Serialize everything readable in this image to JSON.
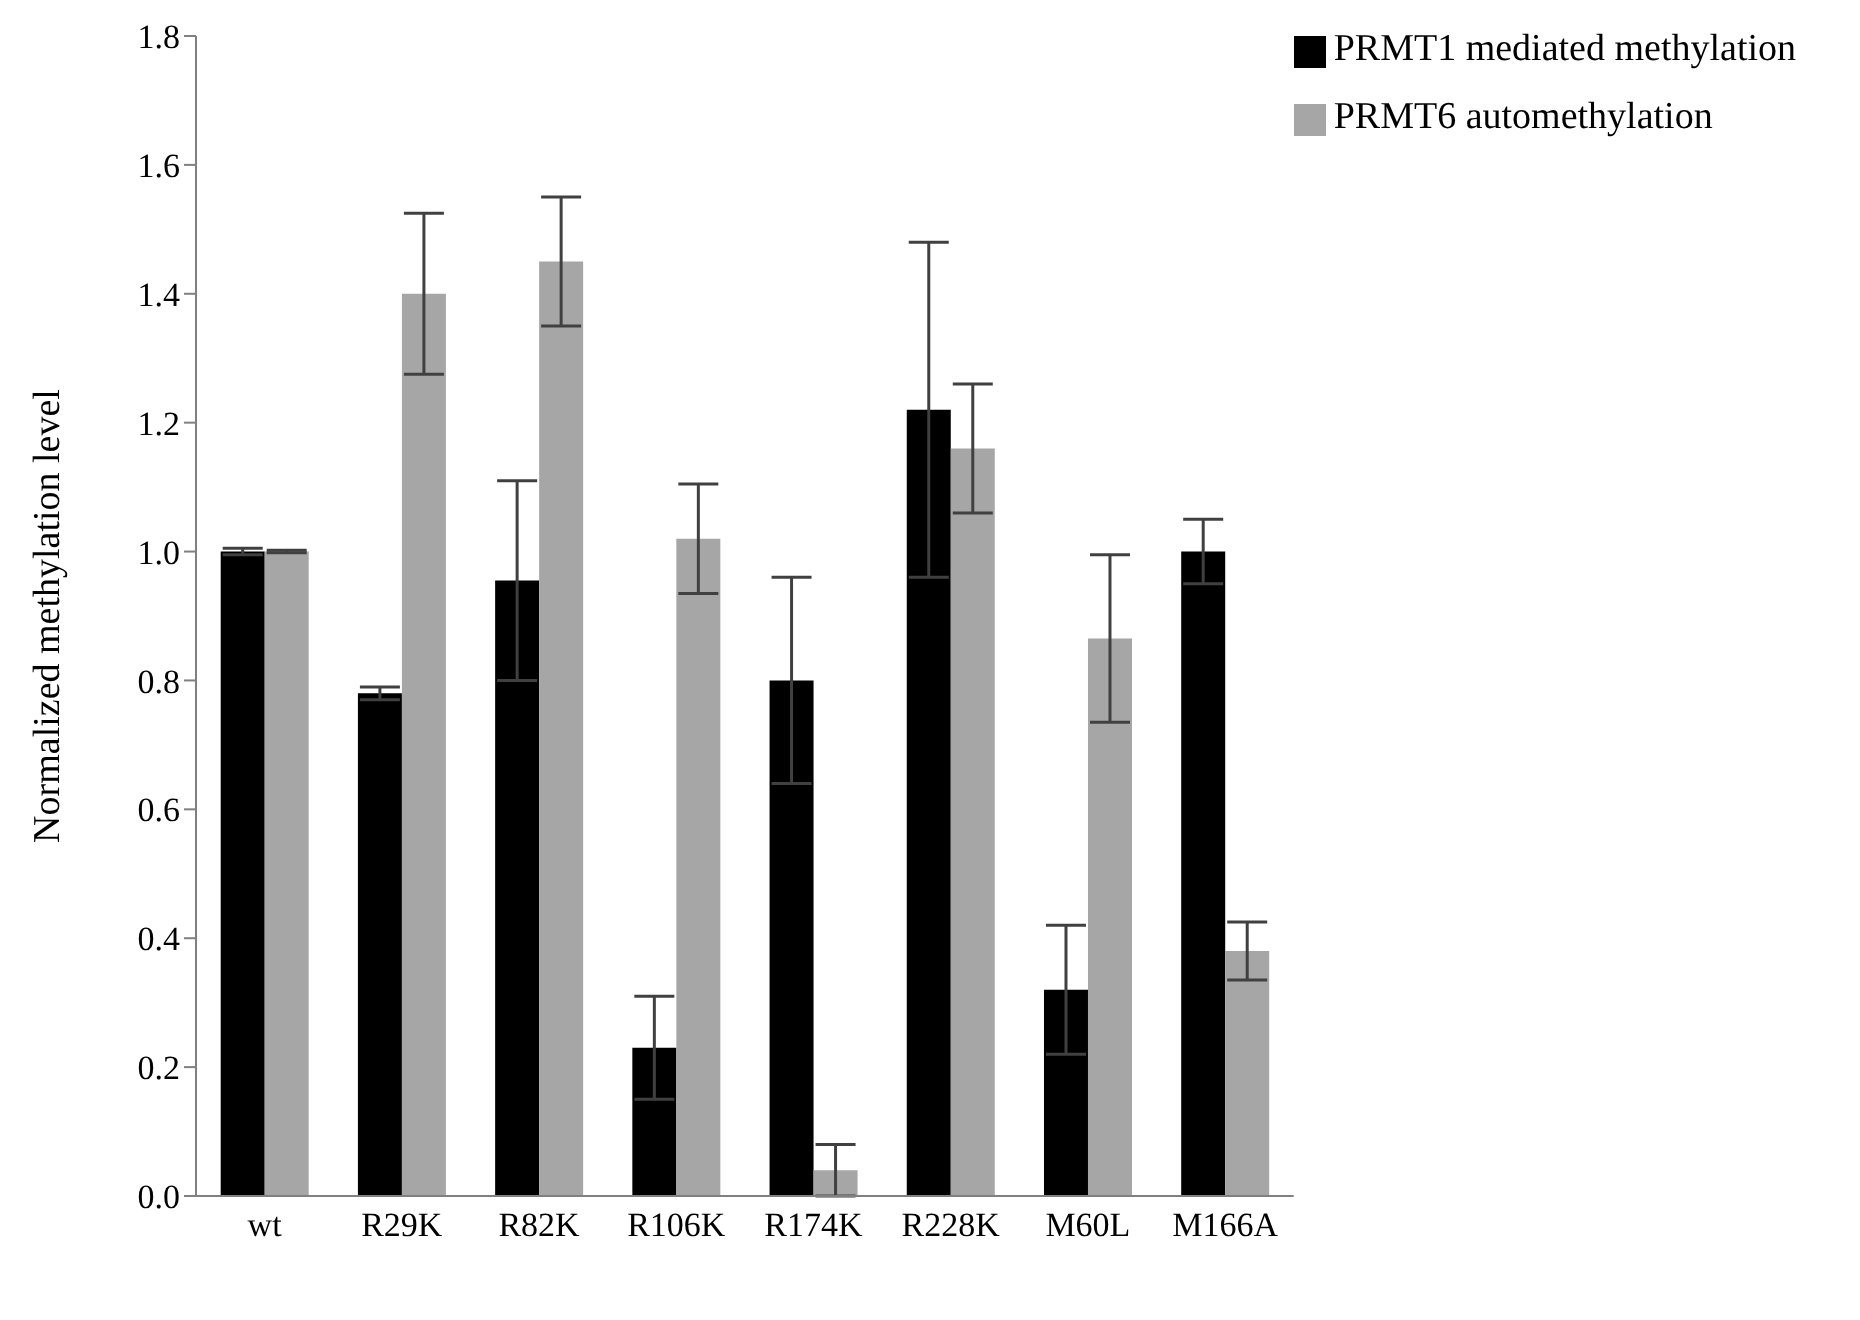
{
  "chart_data": {
    "type": "bar",
    "ylabel": "Normalized methylation  level",
    "categories": [
      "wt",
      "R29K",
      "R82K",
      "R106K",
      "R174K",
      "R228K",
      "M60L",
      "M166A"
    ],
    "series": [
      {
        "name": "PRMT1 mediated methylation",
        "color": "#000000",
        "values": [
          1.0,
          0.78,
          0.955,
          0.23,
          0.8,
          1.22,
          0.32,
          1.0
        ],
        "errors": [
          0.005,
          0.01,
          0.155,
          0.08,
          0.16,
          0.26,
          0.1,
          0.05
        ]
      },
      {
        "name": "PRMT6 automethylation",
        "color": "#a6a6a6",
        "values": [
          1.0,
          1.4,
          1.45,
          1.02,
          0.04,
          1.16,
          0.865,
          0.38
        ],
        "errors": [
          0.002,
          0.125,
          0.1,
          0.085,
          0.04,
          0.1,
          0.13,
          0.045
        ]
      }
    ],
    "ylim": [
      0,
      1.8
    ],
    "yticks": [
      {
        "value": 0,
        "label": "0.0"
      },
      {
        "value": 0.2,
        "label": "0.2"
      },
      {
        "value": 0.4,
        "label": "0.4"
      },
      {
        "value": 0.6,
        "label": "0.6"
      },
      {
        "value": 0.8,
        "label": "0.8"
      },
      {
        "value": 1,
        "label": "1.0"
      },
      {
        "value": 1.2,
        "label": "1.2"
      },
      {
        "value": 1.4,
        "label": "1.4"
      },
      {
        "value": 1.6,
        "label": "1.6"
      },
      {
        "value": 1.8,
        "label": "1.8"
      }
    ],
    "grid": false,
    "legend": "top right"
  }
}
